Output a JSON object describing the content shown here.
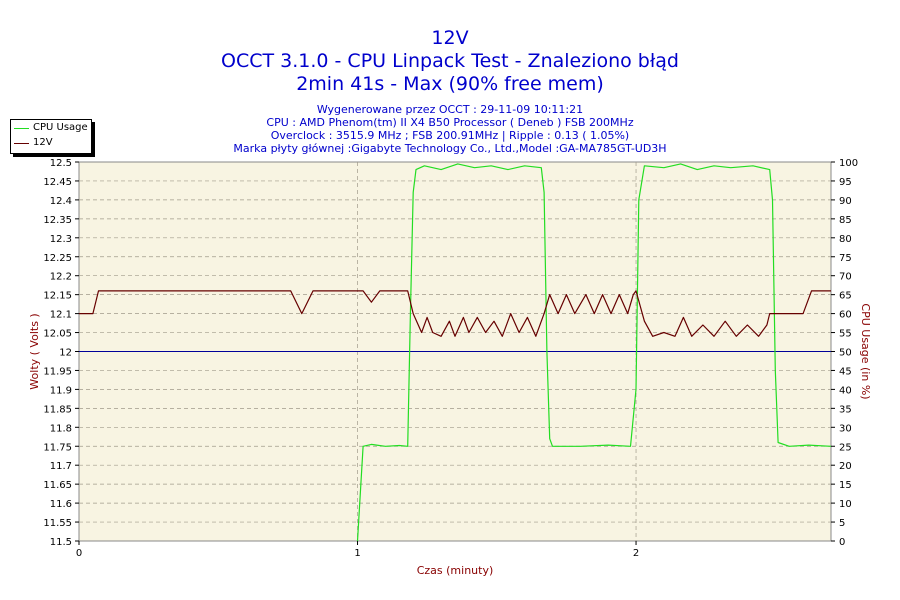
{
  "header": {
    "title_lines": [
      "12V",
      "OCCT 3.1.0 - CPU Linpack Test - Znaleziono błąd",
      "2min 41s - Max (90% free mem)"
    ],
    "info_lines": [
      "Wygenerowane przez OCCT : 29-11-09 10:11:21",
      "CPU : AMD Phenom(tm) II X4 B50 Processor ( Deneb ) FSB 200MHz",
      "Overclock : 3515.9 MHz ; FSB 200.91MHz | Ripple : 0.13 ( 1.05%)",
      "Marka płyty głównej :Gigabyte Technology Co., Ltd.,Model :GA-MA785GT-UD3H"
    ]
  },
  "colors": {
    "plot_background": "#f8f4e2",
    "cpu_line": "#22dd22",
    "volt_line": "#660000",
    "reference_line": "#000099",
    "title_text": "#0000cc",
    "axis_label_text": "#880000"
  },
  "chart_data": {
    "type": "line",
    "xlabel": "Czas (minuty)",
    "ylabel_left": "Wolty ( Volts )",
    "ylabel_right": "CPU Usage (in %)",
    "xlim": [
      0,
      2.7
    ],
    "ylim_left": [
      11.5,
      12.5
    ],
    "ylim_right": [
      0,
      100
    ],
    "x_ticks": [
      "0",
      "1",
      "2"
    ],
    "y_left_ticks": [
      "11.5",
      "11.55",
      "11.6",
      "11.65",
      "11.7",
      "11.75",
      "11.8",
      "11.85",
      "11.9",
      "11.95",
      "12",
      "12.05",
      "12.1",
      "12.15",
      "12.2",
      "12.25",
      "12.3",
      "12.35",
      "12.4",
      "12.45",
      "12.5"
    ],
    "y_right_ticks": [
      "0",
      "5",
      "10",
      "15",
      "20",
      "25",
      "30",
      "35",
      "40",
      "45",
      "50",
      "55",
      "60",
      "65",
      "70",
      "75",
      "80",
      "85",
      "90",
      "95",
      "100"
    ],
    "reference_line_value": 12.0,
    "legend_position": "top-left",
    "grid": true,
    "series": [
      {
        "name": "CPU Usage",
        "axis": "right",
        "points": [
          [
            1.0,
            0
          ],
          [
            1.02,
            25
          ],
          [
            1.05,
            25.5
          ],
          [
            1.1,
            25
          ],
          [
            1.15,
            25.2
          ],
          [
            1.18,
            25
          ],
          [
            1.19,
            60
          ],
          [
            1.2,
            92
          ],
          [
            1.21,
            98
          ],
          [
            1.24,
            99
          ],
          [
            1.3,
            98
          ],
          [
            1.36,
            99.5
          ],
          [
            1.42,
            98.5
          ],
          [
            1.48,
            99
          ],
          [
            1.54,
            98
          ],
          [
            1.6,
            99
          ],
          [
            1.66,
            98.5
          ],
          [
            1.67,
            92
          ],
          [
            1.68,
            50
          ],
          [
            1.69,
            27
          ],
          [
            1.7,
            25
          ],
          [
            1.8,
            25
          ],
          [
            1.9,
            25.3
          ],
          [
            1.98,
            25
          ],
          [
            2.0,
            40
          ],
          [
            2.01,
            90
          ],
          [
            2.03,
            99
          ],
          [
            2.1,
            98.5
          ],
          [
            2.16,
            99.5
          ],
          [
            2.22,
            98
          ],
          [
            2.28,
            99
          ],
          [
            2.34,
            98.5
          ],
          [
            2.42,
            99
          ],
          [
            2.48,
            98
          ],
          [
            2.49,
            90
          ],
          [
            2.5,
            45
          ],
          [
            2.51,
            26
          ],
          [
            2.55,
            25
          ],
          [
            2.62,
            25.3
          ],
          [
            2.7,
            25
          ]
        ]
      },
      {
        "name": "12V",
        "axis": "left",
        "points": [
          [
            0.0,
            12.1
          ],
          [
            0.05,
            12.1
          ],
          [
            0.07,
            12.16
          ],
          [
            0.76,
            12.16
          ],
          [
            0.8,
            12.1
          ],
          [
            0.84,
            12.16
          ],
          [
            1.02,
            12.16
          ],
          [
            1.05,
            12.13
          ],
          [
            1.08,
            12.16
          ],
          [
            1.18,
            12.16
          ],
          [
            1.2,
            12.1
          ],
          [
            1.23,
            12.05
          ],
          [
            1.25,
            12.09
          ],
          [
            1.27,
            12.05
          ],
          [
            1.3,
            12.04
          ],
          [
            1.33,
            12.08
          ],
          [
            1.35,
            12.04
          ],
          [
            1.38,
            12.09
          ],
          [
            1.4,
            12.05
          ],
          [
            1.43,
            12.09
          ],
          [
            1.46,
            12.05
          ],
          [
            1.49,
            12.08
          ],
          [
            1.52,
            12.04
          ],
          [
            1.55,
            12.1
          ],
          [
            1.58,
            12.05
          ],
          [
            1.61,
            12.09
          ],
          [
            1.64,
            12.04
          ],
          [
            1.67,
            12.1
          ],
          [
            1.69,
            12.15
          ],
          [
            1.72,
            12.1
          ],
          [
            1.75,
            12.15
          ],
          [
            1.78,
            12.1
          ],
          [
            1.82,
            12.15
          ],
          [
            1.85,
            12.1
          ],
          [
            1.88,
            12.15
          ],
          [
            1.91,
            12.1
          ],
          [
            1.94,
            12.15
          ],
          [
            1.97,
            12.1
          ],
          [
            1.99,
            12.15
          ],
          [
            2.0,
            12.16
          ],
          [
            2.03,
            12.08
          ],
          [
            2.06,
            12.04
          ],
          [
            2.1,
            12.05
          ],
          [
            2.14,
            12.04
          ],
          [
            2.17,
            12.09
          ],
          [
            2.2,
            12.04
          ],
          [
            2.24,
            12.07
          ],
          [
            2.28,
            12.04
          ],
          [
            2.32,
            12.08
          ],
          [
            2.36,
            12.04
          ],
          [
            2.4,
            12.07
          ],
          [
            2.44,
            12.04
          ],
          [
            2.47,
            12.07
          ],
          [
            2.48,
            12.1
          ],
          [
            2.53,
            12.1
          ],
          [
            2.6,
            12.1
          ],
          [
            2.63,
            12.16
          ],
          [
            2.7,
            12.16
          ]
        ]
      }
    ]
  }
}
